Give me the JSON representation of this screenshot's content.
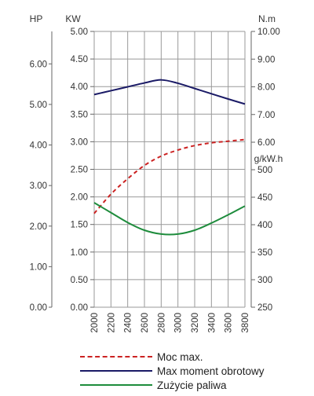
{
  "chart_data": {
    "type": "line",
    "x": [
      2000,
      2200,
      2400,
      2600,
      2800,
      3000,
      3200,
      3400,
      3600,
      3800
    ],
    "xticks": [
      "2000",
      "2200",
      "2400",
      "2600",
      "2800",
      "3000",
      "3200",
      "3400",
      "3600",
      "3800"
    ],
    "xlim": [
      2000,
      3800
    ],
    "axes": {
      "hp": {
        "label": "HP",
        "ticks": [
          "0.00",
          "1.00",
          "2.00",
          "3.00",
          "4.00",
          "5.00",
          "6.00"
        ],
        "lim": [
          0,
          6.8
        ]
      },
      "kw": {
        "label": "KW",
        "ticks": [
          "0.00",
          "0.50",
          "1.00",
          "1.50",
          "2.00",
          "2.50",
          "3.00",
          "3.50",
          "4.00",
          "4.50",
          "5.00"
        ],
        "lim": [
          0,
          5
        ]
      },
      "nm": {
        "label": "N.m",
        "ticks": [
          "6.00",
          "7.00",
          "8.00",
          "9.00",
          "10.00"
        ],
        "lim": [
          6,
          10
        ]
      },
      "gkwh": {
        "label": "g/kW.h",
        "ticks": [
          "250",
          "300",
          "350",
          "400",
          "450",
          "500"
        ],
        "lim": [
          250,
          500
        ]
      }
    },
    "grid": true,
    "series": [
      {
        "name": "Moc max.",
        "axis": "kw",
        "color": "#cc2222",
        "dash": true,
        "values": [
          1.7,
          2.05,
          2.33,
          2.57,
          2.74,
          2.85,
          2.93,
          2.98,
          3.01,
          3.04
        ]
      },
      {
        "name": "Max moment obrotowy",
        "axis": "nm",
        "color": "#1a1a66",
        "dash": false,
        "values": [
          7.72,
          7.86,
          8.0,
          8.14,
          8.25,
          8.13,
          7.94,
          7.75,
          7.56,
          7.38
        ]
      },
      {
        "name": "Zużycie paliwa",
        "axis": "gkwh",
        "color": "#1e8c3c",
        "dash": false,
        "values": [
          440,
          422,
          404,
          390,
          383,
          383,
          390,
          403,
          418,
          434
        ]
      }
    ]
  }
}
